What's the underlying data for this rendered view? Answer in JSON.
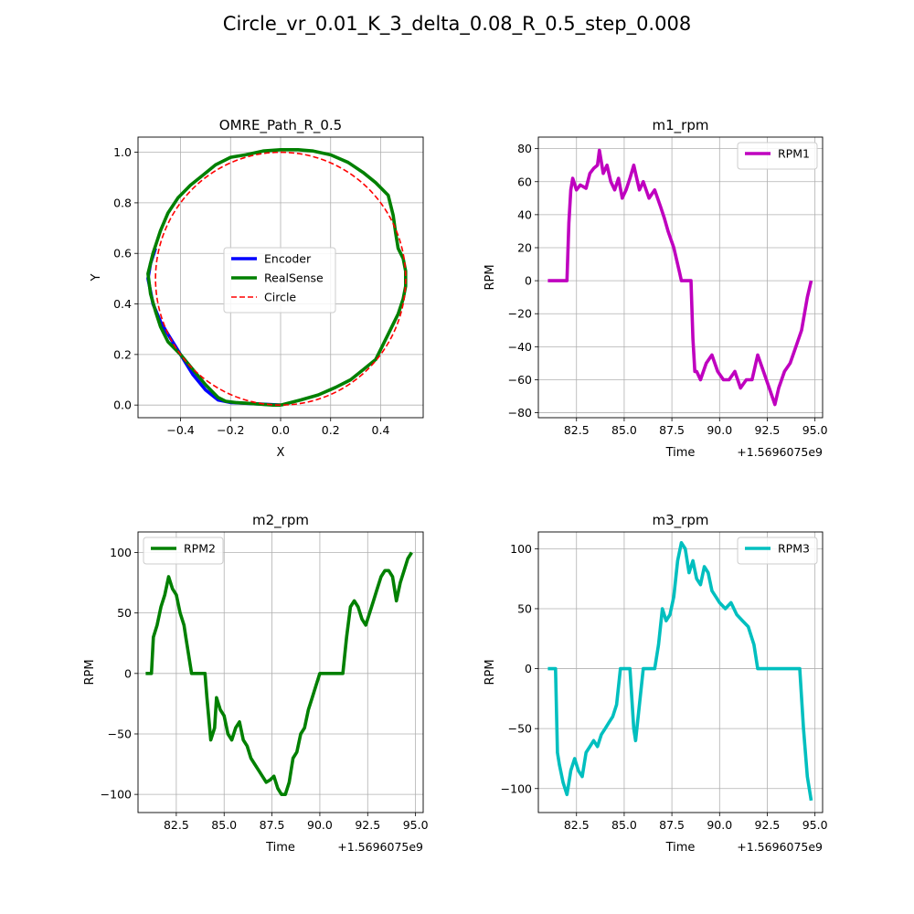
{
  "figure": {
    "title": "Circle_vr_0.01_K_3_delta_0.08_R_0.5_step_0.008"
  },
  "chart_data": [
    {
      "id": "path",
      "type": "line",
      "title": "OMRE_Path_R_0.5",
      "xlabel": "X",
      "ylabel": "Y",
      "xlim": [
        -0.57,
        0.57
      ],
      "ylim": [
        -0.05,
        1.06
      ],
      "xticks": [
        -0.4,
        -0.2,
        0.0,
        0.2,
        0.4
      ],
      "xtick_labels": [
        "−0.4",
        "−0.2",
        "0.0",
        "0.2",
        "0.4"
      ],
      "yticks": [
        0.0,
        0.2,
        0.4,
        0.6,
        0.8,
        1.0
      ],
      "ytick_labels": [
        "0.0",
        "0.2",
        "0.4",
        "0.6",
        "0.8",
        "1.0"
      ],
      "grid": true,
      "legend": "center",
      "series": [
        {
          "name": "Encoder",
          "color": "#0000ff",
          "style": "solid",
          "x": [
            0.0,
            -0.1,
            -0.2,
            -0.25,
            -0.3,
            -0.35,
            -0.4,
            -0.45,
            -0.48,
            -0.51,
            -0.52,
            -0.53,
            -0.52,
            -0.5
          ],
          "y": [
            0.0,
            0.005,
            0.01,
            0.02,
            0.06,
            0.12,
            0.2,
            0.28,
            0.33,
            0.4,
            0.45,
            0.5,
            0.56,
            0.62
          ]
        },
        {
          "name": "RealSense",
          "color": "#008000",
          "style": "solid",
          "x": [
            0.0,
            0.08,
            0.15,
            0.22,
            0.28,
            0.33,
            0.38,
            0.41,
            0.44,
            0.47,
            0.49,
            0.5,
            0.5,
            0.49,
            0.47,
            0.46,
            0.45,
            0.43,
            0.38,
            0.33,
            0.27,
            0.2,
            0.13,
            0.07,
            0.0,
            -0.07,
            -0.14,
            -0.2,
            -0.26,
            -0.31,
            -0.36,
            -0.41,
            -0.45,
            -0.48,
            -0.51,
            -0.53,
            -0.52,
            -0.5,
            -0.48,
            -0.45,
            -0.4,
            -0.35,
            -0.3,
            -0.25,
            -0.22,
            -0.18,
            -0.1,
            -0.03,
            0.0
          ],
          "y": [
            0.0,
            0.02,
            0.04,
            0.07,
            0.1,
            0.14,
            0.18,
            0.24,
            0.3,
            0.36,
            0.42,
            0.47,
            0.53,
            0.58,
            0.62,
            0.68,
            0.75,
            0.83,
            0.88,
            0.92,
            0.96,
            0.99,
            1.005,
            1.01,
            1.01,
            1.005,
            0.99,
            0.98,
            0.95,
            0.91,
            0.87,
            0.82,
            0.76,
            0.69,
            0.6,
            0.52,
            0.44,
            0.37,
            0.31,
            0.25,
            0.2,
            0.14,
            0.08,
            0.03,
            0.015,
            0.01,
            0.005,
            0.0,
            0.0
          ]
        },
        {
          "name": "Circle",
          "color": "#ff0000",
          "style": "dashed",
          "circle": {
            "cx": 0.0,
            "cy": 0.5,
            "r": 0.5
          }
        }
      ]
    },
    {
      "id": "m1",
      "type": "line",
      "title": "m1_rpm",
      "xlabel": "Time",
      "ylabel": "RPM",
      "offset_text": "+1.5696075e9",
      "xlim": [
        80.5,
        95.4
      ],
      "ylim": [
        -83,
        87
      ],
      "xticks": [
        82.5,
        85.0,
        87.5,
        90.0,
        92.5,
        95.0
      ],
      "xtick_labels": [
        "82.5",
        "85.0",
        "87.5",
        "90.0",
        "92.5",
        "95.0"
      ],
      "yticks": [
        -80,
        -60,
        -40,
        -20,
        0,
        20,
        40,
        60,
        80
      ],
      "ytick_labels": [
        "−80",
        "−60",
        "−40",
        "−20",
        "0",
        "20",
        "40",
        "60",
        "80"
      ],
      "grid": true,
      "legend": "upper right",
      "series": [
        {
          "name": "RPM1",
          "color": "#bf00bf",
          "x": [
            81.0,
            82.0,
            82.1,
            82.2,
            82.3,
            82.5,
            82.7,
            83.0,
            83.2,
            83.4,
            83.6,
            83.7,
            83.9,
            84.1,
            84.3,
            84.5,
            84.7,
            84.9,
            85.1,
            85.3,
            85.5,
            85.6,
            85.8,
            86.0,
            86.3,
            86.6,
            86.9,
            87.1,
            87.3,
            87.6,
            87.9,
            88.0,
            88.1,
            88.5,
            88.6,
            88.7,
            88.8,
            89.0,
            89.3,
            89.6,
            89.9,
            90.2,
            90.5,
            90.8,
            91.1,
            91.4,
            91.7,
            92.0,
            92.3,
            92.6,
            92.9,
            93.1,
            93.4,
            93.7,
            94.0,
            94.3,
            94.6,
            94.8
          ],
          "y": [
            0,
            0,
            35,
            55,
            62,
            55,
            58,
            56,
            65,
            68,
            70,
            79,
            65,
            70,
            60,
            55,
            62,
            50,
            55,
            62,
            70,
            65,
            55,
            60,
            50,
            55,
            45,
            38,
            30,
            20,
            5,
            0,
            0,
            0,
            -35,
            -55,
            -55,
            -60,
            -50,
            -45,
            -55,
            -60,
            -60,
            -55,
            -65,
            -60,
            -60,
            -45,
            -55,
            -65,
            -75,
            -65,
            -55,
            -50,
            -40,
            -30,
            -10,
            0
          ]
        }
      ]
    },
    {
      "id": "m2",
      "type": "line",
      "title": "m2_rpm",
      "xlabel": "Time",
      "ylabel": "RPM",
      "offset_text": "+1.5696075e9",
      "xlim": [
        80.5,
        95.4
      ],
      "ylim": [
        -115,
        117
      ],
      "xticks": [
        82.5,
        85.0,
        87.5,
        90.0,
        92.5,
        95.0
      ],
      "xtick_labels": [
        "82.5",
        "85.0",
        "87.5",
        "90.0",
        "92.5",
        "95.0"
      ],
      "yticks": [
        -100,
        -50,
        0,
        50,
        100
      ],
      "ytick_labels": [
        "−100",
        "−50",
        "0",
        "50",
        "100"
      ],
      "grid": true,
      "legend": "upper left",
      "series": [
        {
          "name": "RPM2",
          "color": "#008000",
          "x": [
            80.9,
            81.2,
            81.3,
            81.5,
            81.7,
            81.9,
            82.1,
            82.3,
            82.5,
            82.7,
            82.9,
            83.0,
            83.3,
            83.6,
            83.9,
            84.0,
            84.1,
            84.3,
            84.5,
            84.6,
            84.8,
            85.0,
            85.2,
            85.4,
            85.6,
            85.8,
            86.0,
            86.2,
            86.4,
            86.6,
            86.8,
            87.0,
            87.2,
            87.4,
            87.6,
            87.8,
            88.0,
            88.2,
            88.4,
            88.6,
            88.8,
            89.0,
            89.2,
            89.4,
            89.6,
            89.8,
            90.0,
            90.3,
            90.6,
            90.9,
            91.2,
            91.4,
            91.6,
            91.8,
            92.0,
            92.2,
            92.4,
            92.6,
            92.8,
            93.0,
            93.2,
            93.4,
            93.6,
            93.8,
            94.0,
            94.2,
            94.4,
            94.6,
            94.8
          ],
          "y": [
            0,
            0,
            30,
            40,
            55,
            65,
            80,
            70,
            65,
            50,
            40,
            30,
            0,
            0,
            0,
            0,
            -20,
            -55,
            -45,
            -20,
            -30,
            -35,
            -50,
            -55,
            -45,
            -40,
            -55,
            -60,
            -70,
            -75,
            -80,
            -85,
            -90,
            -88,
            -85,
            -95,
            -100,
            -100,
            -90,
            -70,
            -65,
            -50,
            -45,
            -30,
            -20,
            -10,
            0,
            0,
            0,
            0,
            0,
            30,
            55,
            60,
            55,
            45,
            40,
            50,
            60,
            70,
            80,
            85,
            85,
            80,
            60,
            75,
            85,
            95,
            100
          ]
        }
      ]
    },
    {
      "id": "m3",
      "type": "line",
      "title": "m3_rpm",
      "xlabel": "Time",
      "ylabel": "RPM",
      "offset_text": "+1.5696075e9",
      "xlim": [
        80.5,
        95.4
      ],
      "ylim": [
        -120,
        114
      ],
      "xticks": [
        82.5,
        85.0,
        87.5,
        90.0,
        92.5,
        95.0
      ],
      "xtick_labels": [
        "82.5",
        "85.0",
        "87.5",
        "90.0",
        "92.5",
        "95.0"
      ],
      "yticks": [
        -100,
        -50,
        0,
        50,
        100
      ],
      "ytick_labels": [
        "−100",
        "−50",
        "0",
        "50",
        "100"
      ],
      "grid": true,
      "legend": "upper right",
      "series": [
        {
          "name": "RPM3",
          "color": "#00bfbf",
          "x": [
            81.0,
            81.4,
            81.5,
            81.6,
            81.8,
            82.0,
            82.2,
            82.4,
            82.6,
            82.8,
            83.0,
            83.2,
            83.4,
            83.6,
            83.8,
            84.0,
            84.2,
            84.4,
            84.6,
            84.8,
            85.0,
            85.3,
            85.5,
            85.6,
            85.8,
            86.0,
            86.3,
            86.6,
            86.8,
            87.0,
            87.2,
            87.4,
            87.6,
            87.8,
            88.0,
            88.2,
            88.4,
            88.6,
            88.8,
            89.0,
            89.2,
            89.4,
            89.6,
            89.8,
            90.0,
            90.3,
            90.6,
            90.9,
            91.2,
            91.5,
            91.8,
            92.0,
            92.2,
            92.5,
            92.8,
            93.0,
            93.3,
            93.6,
            93.9,
            94.2,
            94.4,
            94.6,
            94.8
          ],
          "y": [
            0,
            0,
            -70,
            -80,
            -95,
            -105,
            -85,
            -75,
            -85,
            -90,
            -70,
            -65,
            -60,
            -65,
            -55,
            -50,
            -45,
            -40,
            -30,
            0,
            0,
            0,
            -50,
            -60,
            -30,
            0,
            0,
            0,
            20,
            50,
            40,
            45,
            60,
            90,
            105,
            100,
            80,
            90,
            75,
            70,
            85,
            80,
            65,
            60,
            55,
            50,
            55,
            45,
            40,
            35,
            20,
            0,
            0,
            0,
            0,
            0,
            0,
            0,
            0,
            0,
            -50,
            -90,
            -110
          ]
        }
      ]
    }
  ]
}
